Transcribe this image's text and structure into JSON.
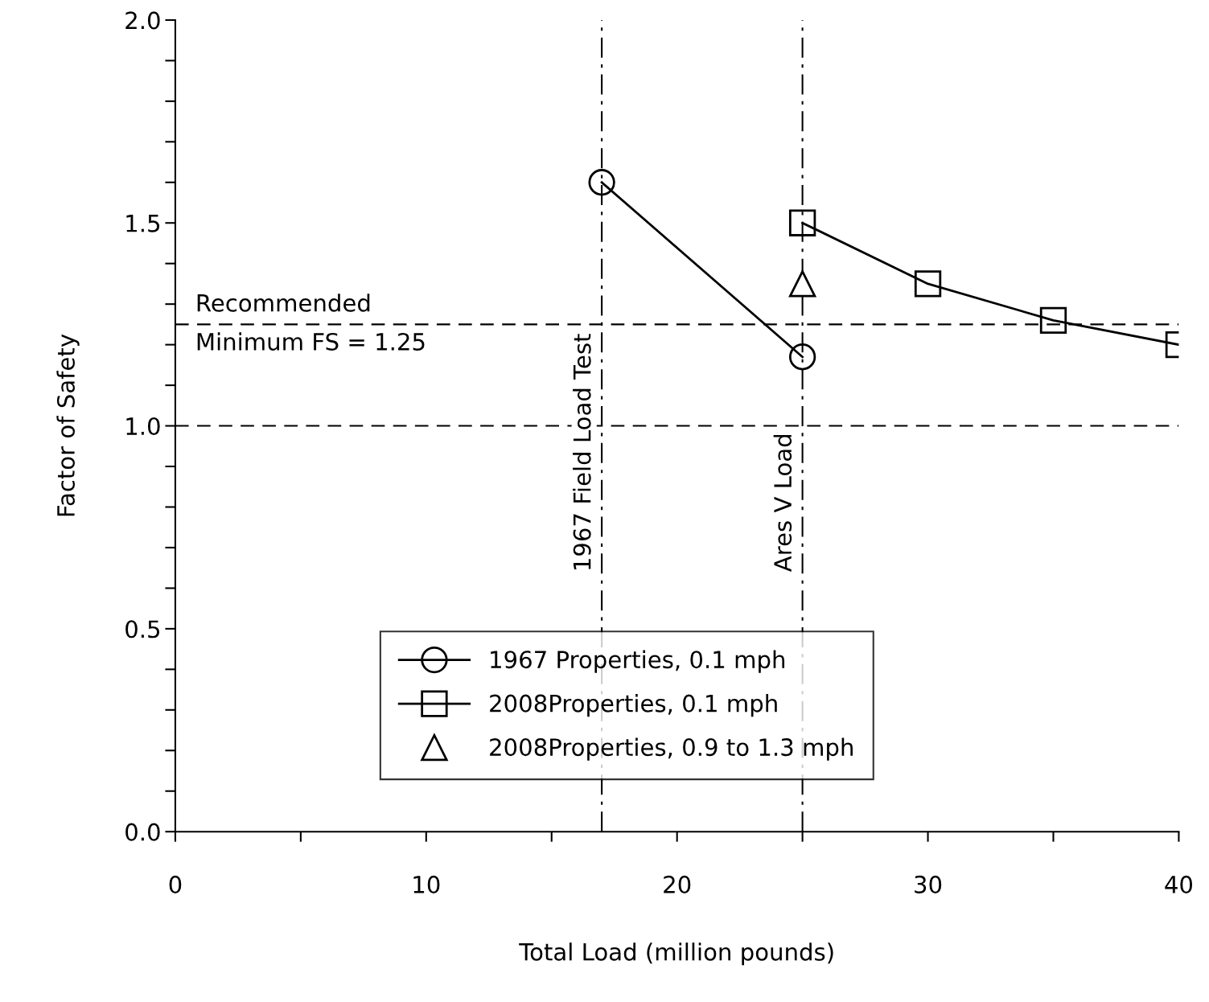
{
  "chart_data": {
    "type": "line",
    "xlabel": "Total Load (million pounds)",
    "ylabel": "Factor of Safety",
    "series": [
      {
        "name": "1967 Properties, 0.1 mph",
        "marker": "circle",
        "color": "#000000",
        "x": [
          17,
          25
        ],
        "values": [
          1.6,
          1.17
        ]
      },
      {
        "name": "2008Properties, 0.1 mph",
        "marker": "square",
        "color": "#000000",
        "x": [
          25,
          30,
          35,
          40
        ],
        "values": [
          1.5,
          1.35,
          1.26,
          1.2
        ]
      },
      {
        "name": "2008Properties, 0.9 to 1.3 mph",
        "type": "scatter",
        "marker": "triangle",
        "color": "#000000",
        "x": [
          25
        ],
        "values": [
          1.35
        ]
      }
    ],
    "xlim": [
      0,
      40
    ],
    "ylim": [
      0,
      2.0
    ],
    "xticks": [
      0,
      {
        "value": 5,
        "label": null
      },
      10,
      {
        "value": 15,
        "label": null
      },
      20,
      {
        "value": 25,
        "label": null
      },
      30,
      {
        "value": 35,
        "label": null
      },
      40
    ],
    "yticks": [
      {
        "value": 0,
        "label": "0.0"
      },
      {
        "value": 0.1,
        "label": null
      },
      {
        "value": 0.2,
        "label": null
      },
      {
        "value": 0.3,
        "label": null
      },
      {
        "value": 0.4,
        "label": null
      },
      0.5,
      {
        "value": 0.6,
        "label": null
      },
      {
        "value": 0.7,
        "label": null
      },
      {
        "value": 0.8,
        "label": null
      },
      {
        "value": 0.9,
        "label": null
      },
      {
        "value": 1.0,
        "label": "1.0"
      },
      {
        "value": 1.1,
        "label": null
      },
      {
        "value": 1.2,
        "label": null
      },
      {
        "value": 1.3,
        "label": null
      },
      {
        "value": 1.4,
        "label": null
      },
      1.5,
      {
        "value": 1.6,
        "label": null
      },
      {
        "value": 1.7,
        "label": null
      },
      {
        "value": 1.8,
        "label": null
      },
      {
        "value": 1.9,
        "label": null
      },
      {
        "value": 2.0,
        "label": "2.0"
      }
    ],
    "ref_lines": [
      {
        "axis": "y",
        "value": 1.25,
        "label": "Recommended\nMinimum FS = 1.25",
        "line_style": "dashed",
        "color": "#000000"
      },
      {
        "axis": "y",
        "value": 1.0,
        "line_style": "dashed",
        "color": "#000000"
      },
      {
        "axis": "x",
        "value": 17,
        "label": "1967 Field Load Test",
        "line_style": "dashdot",
        "color": "#000000"
      },
      {
        "axis": "x",
        "value": 25,
        "label": "Ares V Load",
        "line_style": "dashdot",
        "color": "#000000"
      }
    ],
    "grid": false,
    "legend": "bottom"
  }
}
